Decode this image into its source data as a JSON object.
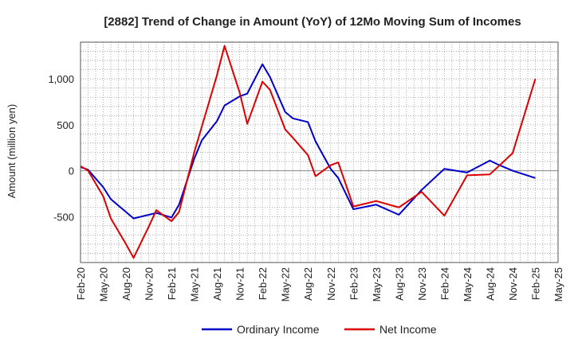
{
  "chart_data": {
    "type": "line",
    "title": "[2882]  Trend of Change in Amount (YoY) of 12Mo Moving Sum of Incomes",
    "ylabel": "Amount (million yen)",
    "xlabel": "",
    "ylim": [
      -1000,
      1400
    ],
    "yticks": [
      -500,
      0,
      500,
      1000
    ],
    "ytick_labels": [
      "-500",
      "0",
      "500",
      "1,000"
    ],
    "x_range": [
      "2020-02",
      "2025-05"
    ],
    "xtick_labels": [
      "Feb-20",
      "May-20",
      "Aug-20",
      "Nov-20",
      "Feb-21",
      "May-21",
      "Aug-21",
      "Nov-21",
      "Feb-22",
      "May-22",
      "Aug-22",
      "Nov-22",
      "Feb-23",
      "May-23",
      "Aug-23",
      "Nov-23",
      "Feb-24",
      "May-24",
      "Aug-24",
      "Nov-24",
      "Feb-25",
      "May-25"
    ],
    "grid": true,
    "legend_position": "bottom",
    "series": [
      {
        "name": "Ordinary Income",
        "color": "#0000cc",
        "points": [
          [
            "2020-02",
            40
          ],
          [
            "2020-03",
            10
          ],
          [
            "2020-05",
            -180
          ],
          [
            "2020-06",
            -310
          ],
          [
            "2020-08",
            -450
          ],
          [
            "2020-09",
            -520
          ],
          [
            "2020-11",
            -480
          ],
          [
            "2020-12",
            -460
          ],
          [
            "2021-02",
            -510
          ],
          [
            "2021-03",
            -370
          ],
          [
            "2021-05",
            130
          ],
          [
            "2021-06",
            330
          ],
          [
            "2021-08",
            540
          ],
          [
            "2021-09",
            710
          ],
          [
            "2021-11",
            810
          ],
          [
            "2021-12",
            840
          ],
          [
            "2022-02",
            1160
          ],
          [
            "2022-03",
            1020
          ],
          [
            "2022-05",
            640
          ],
          [
            "2022-06",
            570
          ],
          [
            "2022-08",
            530
          ],
          [
            "2022-09",
            320
          ],
          [
            "2022-11",
            20
          ],
          [
            "2022-12",
            -80
          ],
          [
            "2023-02",
            -420
          ],
          [
            "2023-05",
            -370
          ],
          [
            "2023-08",
            -480
          ],
          [
            "2023-11",
            -210
          ],
          [
            "2024-02",
            20
          ],
          [
            "2024-05",
            -20
          ],
          [
            "2024-08",
            110
          ],
          [
            "2024-09",
            70
          ],
          [
            "2024-11",
            0
          ],
          [
            "2025-02",
            -80
          ]
        ]
      },
      {
        "name": "Net Income",
        "color": "#dd0000",
        "points": [
          [
            "2020-02",
            50
          ],
          [
            "2020-03",
            0
          ],
          [
            "2020-05",
            -280
          ],
          [
            "2020-06",
            -520
          ],
          [
            "2020-08",
            -800
          ],
          [
            "2020-09",
            -950
          ],
          [
            "2020-11",
            -610
          ],
          [
            "2020-12",
            -430
          ],
          [
            "2021-02",
            -550
          ],
          [
            "2021-03",
            -450
          ],
          [
            "2021-05",
            200
          ],
          [
            "2021-06",
            480
          ],
          [
            "2021-08",
            1040
          ],
          [
            "2021-09",
            1360
          ],
          [
            "2021-11",
            850
          ],
          [
            "2021-12",
            510
          ],
          [
            "2022-02",
            970
          ],
          [
            "2022-03",
            880
          ],
          [
            "2022-05",
            450
          ],
          [
            "2022-06",
            360
          ],
          [
            "2022-08",
            170
          ],
          [
            "2022-09",
            -60
          ],
          [
            "2022-11",
            60
          ],
          [
            "2022-12",
            90
          ],
          [
            "2023-02",
            -390
          ],
          [
            "2023-05",
            -330
          ],
          [
            "2023-08",
            -400
          ],
          [
            "2023-11",
            -230
          ],
          [
            "2024-02",
            -490
          ],
          [
            "2024-05",
            -50
          ],
          [
            "2024-08",
            -40
          ],
          [
            "2024-11",
            190
          ],
          [
            "2025-02",
            1000
          ]
        ]
      }
    ]
  }
}
